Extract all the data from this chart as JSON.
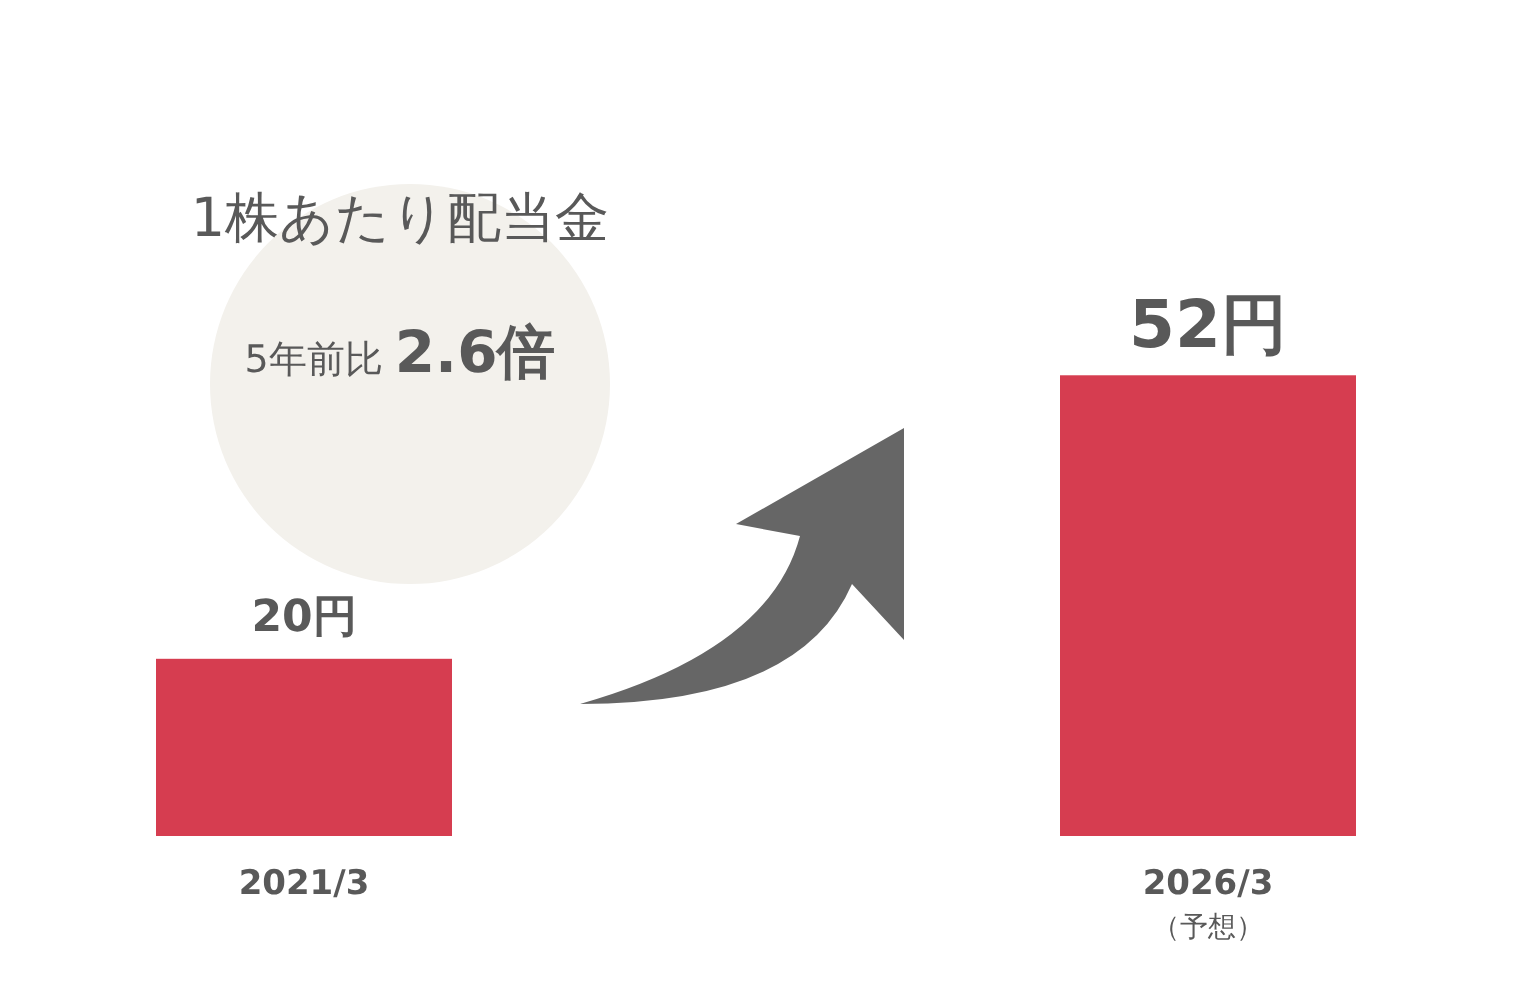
{
  "chart_data": {
    "type": "bar",
    "title": "1株あたり配当金",
    "subtitle": "5年前比 2.6倍",
    "categories": [
      "2021/3",
      "2026/3"
    ],
    "values": [
      20,
      52
    ],
    "value_labels": [
      "20円",
      "52円"
    ],
    "color": "#d63d50",
    "annotations": [
      "（予想）"
    ]
  }
}
